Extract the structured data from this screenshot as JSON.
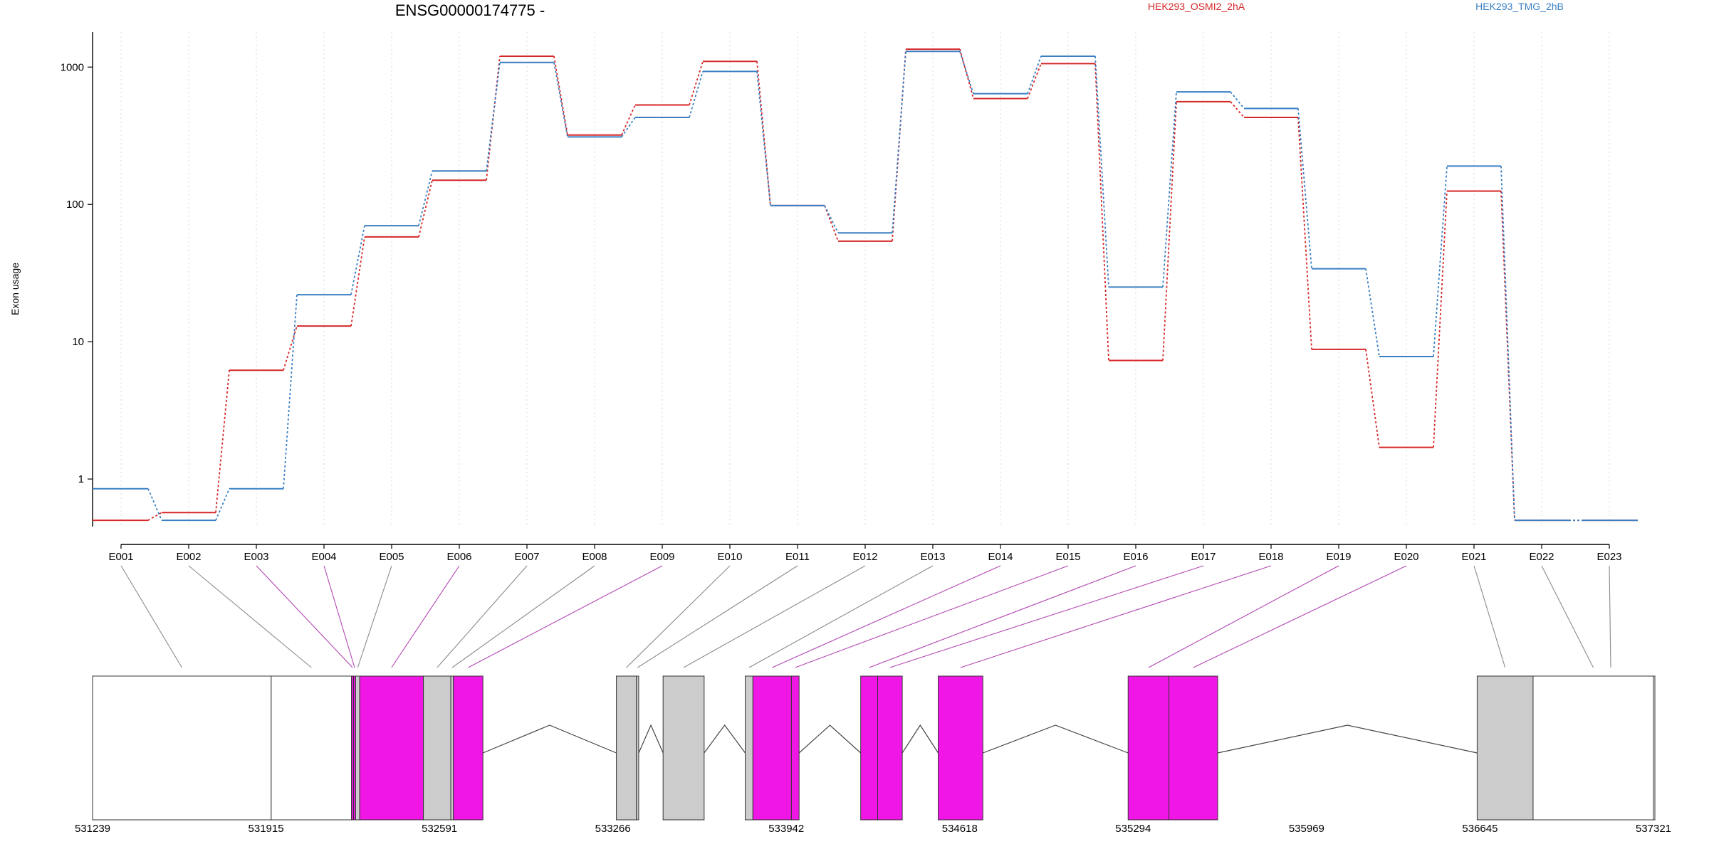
{
  "chart_data": [
    {
      "type": "line",
      "title": "ENSG00000174775 -",
      "ylabel": "Exon usage",
      "yscale": "log",
      "y_ticks": [
        1,
        10,
        100,
        1000
      ],
      "y_tick_labels": [
        "1",
        "10",
        "100",
        "1000"
      ],
      "ylim": [
        0.45,
        1800
      ],
      "grid": "vertical dotted",
      "legend_placement": "top",
      "categories": [
        "E001",
        "E002",
        "E003",
        "E004",
        "E005",
        "E006",
        "E007",
        "E008",
        "E009",
        "E010",
        "E011",
        "E012",
        "E013",
        "E014",
        "E015",
        "E016",
        "E017",
        "E018",
        "E019",
        "E020",
        "E021",
        "E022",
        "E023"
      ],
      "series": [
        {
          "name": "HEK293_OSMI2_2hA",
          "color": "#d62728",
          "values": [
            0.5,
            0.57,
            6.2,
            13,
            58,
            150,
            1200,
            320,
            530,
            1100,
            98,
            54,
            1350,
            590,
            1060,
            7.3,
            560,
            430,
            8.8,
            1.7,
            125,
            0.5,
            0.5
          ]
        },
        {
          "name": "HEK293_TMG_2hB",
          "color": "#3a7fc4",
          "values": [
            0.85,
            0.5,
            0.85,
            22,
            70,
            175,
            1080,
            310,
            430,
            930,
            98,
            62,
            1300,
            640,
            1200,
            25,
            660,
            500,
            34,
            7.8,
            190,
            0.5,
            0.5
          ]
        }
      ]
    },
    {
      "type": "gene_model",
      "genomic_ticks": [
        "531239",
        "531915",
        "532591",
        "533266",
        "533942",
        "534618",
        "535294",
        "535969",
        "536645",
        "537321"
      ],
      "x_range": [
        531239,
        537321
      ],
      "exons": [
        {
          "id": "E001",
          "start": 531239,
          "end": 531935,
          "highlight": false,
          "tall": true
        },
        {
          "id": "E002",
          "start": 531935,
          "end": 532248,
          "highlight": false,
          "tall": true
        },
        {
          "id": "E003",
          "start": 532248,
          "end": 532256,
          "highlight": true,
          "tall": true
        },
        {
          "id": "E004",
          "start": 532256,
          "end": 532264,
          "highlight": true,
          "tall": true
        },
        {
          "id": "E005",
          "start": 532264,
          "end": 532280,
          "highlight": false,
          "tall": true
        },
        {
          "id": "E006",
          "start": 532280,
          "end": 532528,
          "highlight": true,
          "tall": true
        },
        {
          "id": "E007",
          "start": 532528,
          "end": 532635,
          "highlight": false,
          "tall": true
        },
        {
          "id": "E008",
          "start": 532635,
          "end": 532645,
          "highlight": false,
          "tall": true
        },
        {
          "id": "E009",
          "start": 532645,
          "end": 532760,
          "highlight": true,
          "tall": true
        },
        {
          "id": "E010",
          "start": 533280,
          "end": 533358,
          "highlight": false,
          "tall": true
        },
        {
          "id": "E011",
          "start": 533358,
          "end": 533367,
          "highlight": false,
          "tall": true
        },
        {
          "id": "E012",
          "start": 533462,
          "end": 533622,
          "highlight": false,
          "tall": true
        },
        {
          "id": "E013",
          "start": 533782,
          "end": 533812,
          "highlight": false,
          "tall": true
        },
        {
          "id": "E014",
          "start": 533812,
          "end": 533962,
          "highlight": true,
          "tall": true
        },
        {
          "id": "E015",
          "start": 533962,
          "end": 533992,
          "highlight": true,
          "tall": true
        },
        {
          "id": "E016",
          "start": 534232,
          "end": 534298,
          "highlight": true,
          "tall": true
        },
        {
          "id": "E017",
          "start": 534298,
          "end": 534394,
          "highlight": true,
          "tall": true
        },
        {
          "id": "E018",
          "start": 534534,
          "end": 534708,
          "highlight": true,
          "tall": true
        },
        {
          "id": "E019",
          "start": 535274,
          "end": 535433,
          "highlight": true,
          "tall": true
        },
        {
          "id": "E020",
          "start": 535433,
          "end": 535623,
          "highlight": true,
          "tall": true
        },
        {
          "id": "E021",
          "start": 536634,
          "end": 536852,
          "highlight": false,
          "tall": true
        },
        {
          "id": "E022",
          "start": 536852,
          "end": 537321,
          "highlight": false,
          "tall": true
        },
        {
          "id": "E023",
          "start": 537321,
          "end": 537370,
          "highlight": false,
          "tall": true
        }
      ],
      "colors": {
        "highlight": "#f017e6",
        "plain": "#cccccc",
        "utr": "#ffffff",
        "link_plain": "#8a8a8a",
        "link_highlight": "#b347b3"
      }
    }
  ]
}
